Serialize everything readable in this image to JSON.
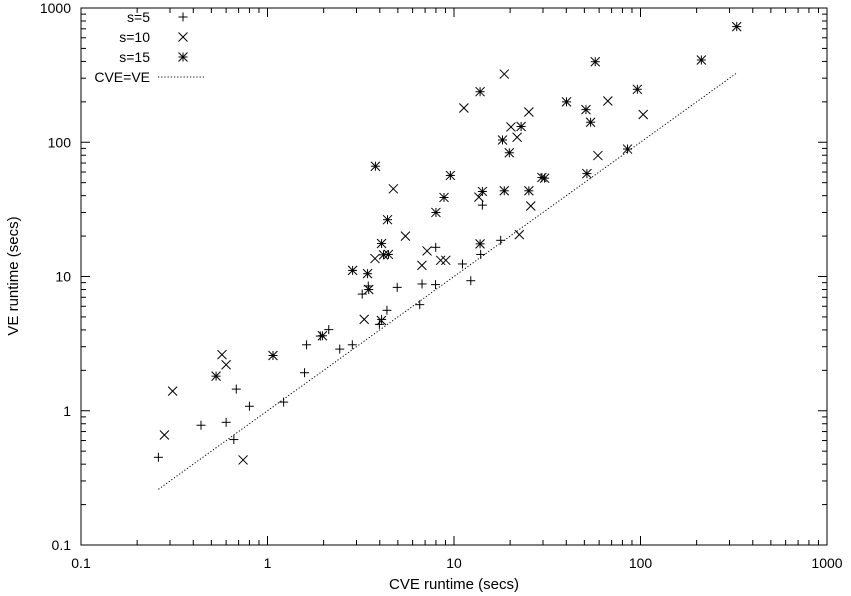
{
  "chart_data": {
    "type": "scatter",
    "title": "",
    "xlabel": "CVE runtime (secs)",
    "ylabel": "VE runtime (secs)",
    "xscale": "log",
    "yscale": "log",
    "xlim": [
      0.1,
      1000
    ],
    "ylim": [
      0.1,
      1000
    ],
    "grid": false,
    "legend_position": "top-left",
    "x_tick_labels": [
      "0.1",
      "1",
      "10",
      "100",
      "1000"
    ],
    "y_tick_labels": [
      "0.1",
      "1",
      "10",
      "100",
      "1000"
    ],
    "series": [
      {
        "name": "s=5",
        "marker": "plus",
        "points": [
          [
            0.26,
            0.45
          ],
          [
            0.44,
            0.78
          ],
          [
            0.6,
            0.82
          ],
          [
            0.66,
            0.61
          ],
          [
            0.68,
            1.45
          ],
          [
            0.8,
            1.08
          ],
          [
            1.22,
            1.16
          ],
          [
            1.58,
            1.92
          ],
          [
            1.62,
            3.1
          ],
          [
            1.92,
            3.6
          ],
          [
            2.13,
            4.02
          ],
          [
            2.44,
            2.88
          ],
          [
            2.85,
            3.1
          ],
          [
            3.22,
            7.4
          ],
          [
            3.47,
            8.5
          ],
          [
            3.98,
            4.4
          ],
          [
            4.09,
            4.79
          ],
          [
            4.37,
            5.6
          ],
          [
            4.96,
            8.3
          ],
          [
            6.55,
            6.17
          ],
          [
            6.74,
            8.8
          ],
          [
            7.96,
            8.7
          ],
          [
            7.98,
            16.5
          ],
          [
            11.1,
            12.4
          ],
          [
            12.3,
            9.3
          ],
          [
            13.9,
            14.6
          ],
          [
            14.2,
            34.0
          ],
          [
            17.8,
            18.6
          ]
        ]
      },
      {
        "name": "s=10",
        "marker": "cross",
        "points": [
          [
            0.28,
            0.66
          ],
          [
            0.31,
            1.4
          ],
          [
            0.57,
            2.62
          ],
          [
            0.6,
            2.2
          ],
          [
            0.74,
            0.43
          ],
          [
            3.3,
            4.79
          ],
          [
            3.77,
            13.6
          ],
          [
            4.08,
            4.7
          ],
          [
            4.73,
            45.0
          ],
          [
            5.49,
            20.0
          ],
          [
            6.73,
            12.1
          ],
          [
            7.17,
            15.5
          ],
          [
            8.48,
            13.2
          ],
          [
            9.04,
            13.2
          ],
          [
            11.3,
            180.0
          ],
          [
            13.6,
            39.0
          ],
          [
            18.6,
            322.0
          ],
          [
            20.2,
            130.0
          ],
          [
            21.8,
            109.0
          ],
          [
            22.4,
            20.5
          ],
          [
            25.2,
            168.0
          ],
          [
            25.8,
            33.5
          ],
          [
            59.1,
            79.6
          ],
          [
            66.8,
            203.0
          ],
          [
            103.4,
            161.0
          ]
        ]
      },
      {
        "name": "s=15",
        "marker": "star",
        "points": [
          [
            0.53,
            1.81
          ],
          [
            1.07,
            2.58
          ],
          [
            1.97,
            3.62
          ],
          [
            2.86,
            11.1
          ],
          [
            3.44,
            10.5
          ],
          [
            3.49,
            8.0
          ],
          [
            3.79,
            66.3
          ],
          [
            4.09,
            17.6
          ],
          [
            4.19,
            14.5
          ],
          [
            4.4,
            26.5
          ],
          [
            4.45,
            14.6
          ],
          [
            8.0,
            30.0
          ],
          [
            8.84,
            38.8
          ],
          [
            9.56,
            56.6
          ],
          [
            13.8,
            17.5
          ],
          [
            13.8,
            238.0
          ],
          [
            14.2,
            43.0
          ],
          [
            18.2,
            104.0
          ],
          [
            18.6,
            43.5
          ],
          [
            19.8,
            83.5
          ],
          [
            22.9,
            131.0
          ],
          [
            25.2,
            43.5
          ],
          [
            29.6,
            54.7
          ],
          [
            30.6,
            54.0
          ],
          [
            40.1,
            200.0
          ],
          [
            51.0,
            175.0
          ],
          [
            51.6,
            58.4
          ],
          [
            54.0,
            141.0
          ],
          [
            57.2,
            398.0
          ],
          [
            85.2,
            89.0
          ],
          [
            96.2,
            248.0
          ],
          [
            212.0,
            410.0
          ],
          [
            328.0,
            727.0
          ]
        ]
      },
      {
        "name": "CVE=VE",
        "marker": "dotted-line",
        "points": [
          [
            0.26,
            0.26
          ],
          [
            328.0,
            328.0
          ]
        ]
      }
    ]
  }
}
